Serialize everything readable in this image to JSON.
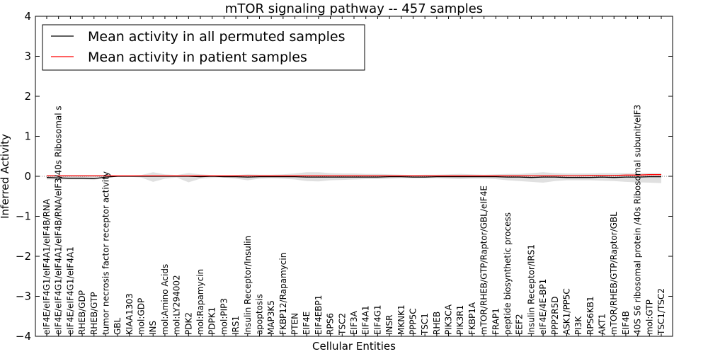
{
  "chart_data": {
    "type": "line",
    "title": "mTOR signaling pathway -- 457 samples",
    "xlabel": "Cellular Entities",
    "ylabel": "Inferred Activity",
    "ylim": [
      -4,
      4
    ],
    "yticks": [
      -4,
      -3,
      -2,
      -1,
      0,
      1,
      2,
      3,
      4
    ],
    "ytick_labels": [
      "−4",
      "−3",
      "−2",
      "−1",
      "0",
      "1",
      "2",
      "3",
      "4"
    ],
    "grid": false,
    "legend_position": "top-left",
    "categories": [
      "eIF4E/eIF4G1/eIF4A1/eIF4B/RNA",
      "eIF4E/eIF4G1/eIF4A1/eIF4B/RNA/eIF3/40s Ribosomal s",
      "eIF4E/eIF4G1/eIF4A1",
      "RHEB/GDP",
      "RHEB/GTP",
      "tumor necrosis factor receptor activity",
      "GBL",
      "KIAA1303",
      "mol:GDP",
      "INS",
      "mol:Amino Acids",
      "mol:LY294002",
      "PDK2",
      "mol:Rapamycin",
      "PDPK1",
      "mol:PIP3",
      "IRS1",
      "Insulin Receptor/Insulin",
      "apoptosis",
      "MAP3K5",
      "FKBP12/Rapamycin",
      "PTEN",
      "EIF4E",
      "EIF4EBP1",
      "RPS6",
      "TSC2",
      "EIF3A",
      "EIF4A1",
      "EIF4G1",
      "INSR",
      "MKNK1",
      "PPP5C",
      "TSC1",
      "RHEB",
      "PIK3CA",
      "PIK3R1",
      "FKBP1A",
      "mTOR/RHEB/GTP/Raptor/GBL/eIF4E",
      "FRAP1",
      "peptide biosynthetic process",
      "EEF2",
      "Insulin Receptor/IRS1",
      "eIF4E/4E-BP1",
      "PPP2R5D",
      "ASK1/PP5C",
      "PI3K",
      "RPS6KB1",
      "AKT1",
      "mTOR/RHEB/GTP/Raptor/GBL",
      "EIF4B",
      "40S S6 ribosomal protein /40s Ribosomal subunit/eIF3",
      "mol:GTP",
      "TSC1/TSC2"
    ],
    "series": [
      {
        "name": "Mean activity in all permuted samples",
        "color": "#000000",
        "values": [
          -0.03,
          -0.04,
          -0.05,
          -0.05,
          -0.06,
          -0.02,
          0,
          0,
          0,
          0,
          0,
          0,
          0,
          -0.01,
          0,
          -0.01,
          -0.01,
          -0.02,
          -0.01,
          -0.01,
          -0.01,
          -0.01,
          -0.02,
          -0.02,
          -0.02,
          -0.02,
          -0.02,
          -0.02,
          -0.02,
          -0.01,
          -0.01,
          -0.02,
          -0.02,
          -0.01,
          -0.01,
          -0.01,
          -0.01,
          -0.01,
          -0.01,
          -0.02,
          -0.02,
          -0.03,
          -0.02,
          -0.02,
          -0.03,
          -0.03,
          -0.03,
          -0.02,
          -0.03,
          -0.02,
          -0.02,
          -0.01,
          -0.01
        ]
      },
      {
        "name": "Mean activity in patient samples",
        "color": "#ff0000",
        "values": [
          0.01,
          0.01,
          0.01,
          0.01,
          0.01,
          0.01,
          0.01,
          0.01,
          0.01,
          0.01,
          0.01,
          0.01,
          0.01,
          0.01,
          0.01,
          0.01,
          0.01,
          0.01,
          0.01,
          0.01,
          0.01,
          0.01,
          0.01,
          0.01,
          0.01,
          0.01,
          0.01,
          0.01,
          0.01,
          0.01,
          0.01,
          0.01,
          0.01,
          0.01,
          0.01,
          0.01,
          0.01,
          0.01,
          0.01,
          0.01,
          0.01,
          0.01,
          0.01,
          0.01,
          0.01,
          0.01,
          0.02,
          0.02,
          0.02,
          0.03,
          0.03,
          0.04,
          0.04
        ]
      }
    ],
    "band": {
      "color": "#bbbbbb",
      "upper": [
        0.03,
        0.03,
        0.03,
        0.03,
        0.03,
        0.03,
        0.01,
        0.01,
        0.03,
        0.1,
        0.05,
        0.03,
        0.08,
        0.05,
        0.03,
        0.02,
        0.03,
        0.05,
        0.04,
        0.04,
        0.05,
        0.07,
        0.1,
        0.1,
        0.08,
        0.07,
        0.07,
        0.06,
        0.06,
        0.05,
        0.04,
        0.03,
        0.04,
        0.04,
        0.05,
        0.06,
        0.05,
        0.04,
        0.05,
        0.06,
        0.06,
        0.08,
        0.1,
        0.08,
        0.07,
        0.07,
        0.07,
        0.08,
        0.08,
        0.08,
        0.08,
        0.08,
        0.08
      ],
      "lower": [
        -0.08,
        -0.08,
        -0.08,
        -0.08,
        -0.09,
        -0.04,
        -0.01,
        -0.01,
        -0.03,
        -0.14,
        -0.06,
        -0.03,
        -0.15,
        -0.06,
        -0.04,
        -0.03,
        -0.06,
        -0.1,
        -0.06,
        -0.05,
        -0.06,
        -0.08,
        -0.12,
        -0.13,
        -0.1,
        -0.09,
        -0.08,
        -0.07,
        -0.07,
        -0.06,
        -0.05,
        -0.05,
        -0.05,
        -0.05,
        -0.06,
        -0.07,
        -0.06,
        -0.06,
        -0.07,
        -0.1,
        -0.12,
        -0.14,
        -0.16,
        -0.12,
        -0.1,
        -0.1,
        -0.1,
        -0.11,
        -0.12,
        -0.14,
        -0.15,
        -0.16,
        -0.17
      ]
    }
  }
}
